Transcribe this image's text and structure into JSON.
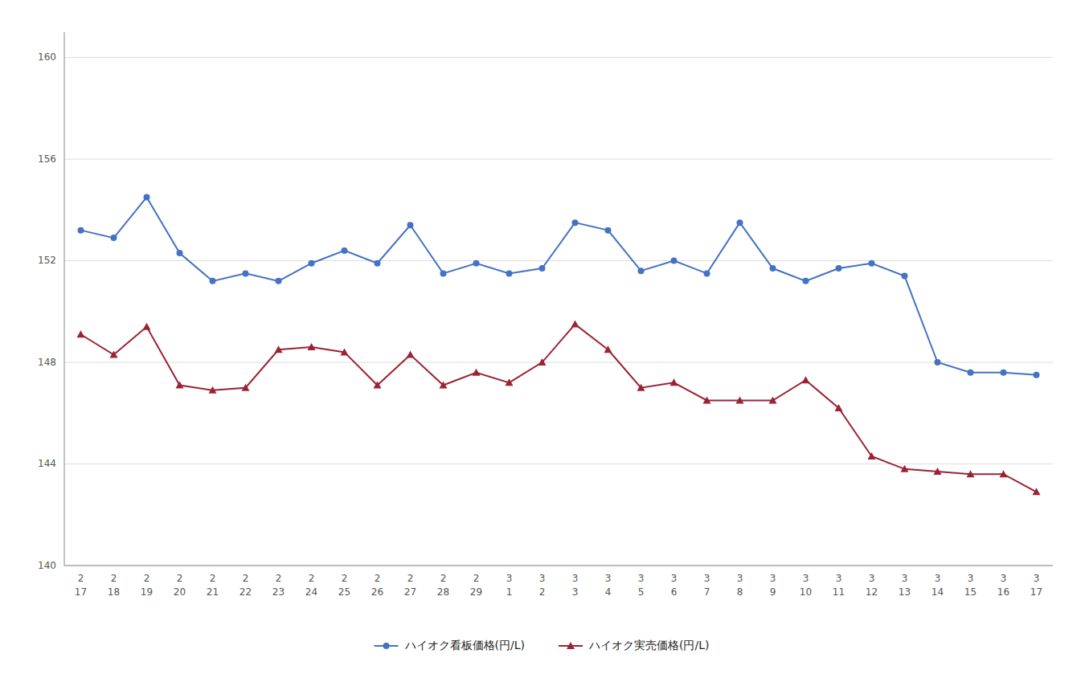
{
  "chart_data": {
    "type": "line",
    "categories": [
      [
        "2",
        "17"
      ],
      [
        "2",
        "18"
      ],
      [
        "2",
        "19"
      ],
      [
        "2",
        "20"
      ],
      [
        "2",
        "21"
      ],
      [
        "2",
        "22"
      ],
      [
        "2",
        "23"
      ],
      [
        "2",
        "24"
      ],
      [
        "2",
        "25"
      ],
      [
        "2",
        "26"
      ],
      [
        "2",
        "27"
      ],
      [
        "2",
        "28"
      ],
      [
        "2",
        "29"
      ],
      [
        "3",
        "1"
      ],
      [
        "3",
        "2"
      ],
      [
        "3",
        "3"
      ],
      [
        "3",
        "4"
      ],
      [
        "3",
        "5"
      ],
      [
        "3",
        "6"
      ],
      [
        "3",
        "7"
      ],
      [
        "3",
        "8"
      ],
      [
        "3",
        "9"
      ],
      [
        "3",
        "10"
      ],
      [
        "3",
        "11"
      ],
      [
        "3",
        "12"
      ],
      [
        "3",
        "13"
      ],
      [
        "3",
        "14"
      ],
      [
        "3",
        "15"
      ],
      [
        "3",
        "16"
      ],
      [
        "3",
        "17"
      ]
    ],
    "series": [
      {
        "name": "ハイオク看板価格(円/L)",
        "color": "#4472C4",
        "marker": "circle",
        "values": [
          153.2,
          152.9,
          154.5,
          152.3,
          151.2,
          151.5,
          151.2,
          151.9,
          152.4,
          151.9,
          153.4,
          151.5,
          151.9,
          151.5,
          151.7,
          153.5,
          153.2,
          151.6,
          152.0,
          151.5,
          153.5,
          151.7,
          151.2,
          151.7,
          151.9,
          151.4,
          148.0,
          147.6,
          147.6,
          147.5
        ]
      },
      {
        "name": "ハイオク実売価格(円/L)",
        "color": "#9B2335",
        "marker": "triangle",
        "values": [
          149.1,
          148.3,
          149.4,
          147.1,
          146.9,
          147.0,
          148.5,
          148.6,
          148.4,
          147.1,
          148.3,
          147.1,
          147.6,
          147.2,
          148.0,
          149.5,
          148.5,
          147.0,
          147.2,
          146.5,
          146.5,
          146.5,
          147.3,
          146.2,
          144.3,
          143.8,
          143.7,
          143.6,
          143.6,
          142.9
        ]
      }
    ],
    "ylim": [
      140,
      161
    ],
    "yticks": [
      140,
      144,
      148,
      152,
      156,
      160
    ],
    "grid": true,
    "legend": "bottom"
  }
}
